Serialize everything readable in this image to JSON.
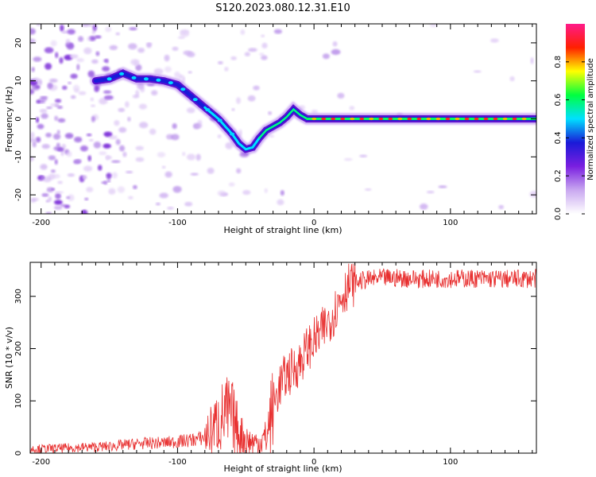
{
  "title": "S120.2023.080.12.31.E10",
  "chart_data": [
    {
      "type": "heatmap",
      "xlabel": "Height of straight line (km)",
      "ylabel": "Frequency (Hz)",
      "xlim": [
        -208,
        163
      ],
      "ylim": [
        -25,
        25
      ],
      "xticks": [
        -200,
        -100,
        0,
        100
      ],
      "yticks": [
        -20,
        -10,
        0,
        10,
        20
      ],
      "colorbar": {
        "label": "Normalized spectral amplitude",
        "range": [
          0,
          1
        ],
        "ticks": [
          "0.0",
          "0.2",
          "0.4",
          "0.6",
          "0.8"
        ],
        "colors": [
          "#ffffff",
          "#c9a8f0",
          "#7a1fe0",
          "#1a1ad8",
          "#00e0ff",
          "#00ff40",
          "#ffff00",
          "#ff2000",
          "#ff1a8a"
        ]
      },
      "ridge": {
        "x": [
          -160,
          -150,
          -140,
          -130,
          -120,
          -110,
          -100,
          -90,
          -80,
          -70,
          -60,
          -55,
          -50,
          -45,
          -40,
          -35,
          -30,
          -25,
          -20,
          -15,
          -10,
          -5,
          0,
          50,
          100,
          163
        ],
        "y": [
          10,
          10.5,
          12,
          10.5,
          10.5,
          10,
          9,
          6,
          3,
          0,
          -4,
          -6.5,
          -8,
          -7.5,
          -5,
          -3,
          -2,
          -1,
          0.5,
          2.5,
          1,
          0,
          0,
          0,
          0,
          0
        ]
      }
    },
    {
      "type": "line",
      "xlabel": "Height of straight line (km)",
      "ylabel": "SNR (10 * v/v)",
      "xlim": [
        -208,
        163
      ],
      "ylim": [
        0,
        365
      ],
      "xticks": [
        -200,
        -100,
        0,
        100
      ],
      "yticks": [
        0,
        100,
        200,
        300
      ],
      "color": "#e83030",
      "x": [
        -208,
        -190,
        -170,
        -150,
        -130,
        -110,
        -100,
        -90,
        -80,
        -75,
        -70,
        -65,
        -60,
        -55,
        -50,
        -45,
        -40,
        -35,
        -30,
        -25,
        -20,
        -15,
        -10,
        -5,
        0,
        5,
        10,
        15,
        20,
        25,
        30,
        35,
        40,
        50,
        60,
        80,
        100,
        120,
        140,
        163
      ],
      "y": [
        8,
        9,
        11,
        13,
        18,
        20,
        22,
        25,
        30,
        45,
        60,
        75,
        70,
        40,
        25,
        20,
        20,
        30,
        90,
        130,
        150,
        160,
        175,
        200,
        215,
        230,
        250,
        270,
        300,
        320,
        325,
        330,
        332,
        335,
        335,
        333,
        334,
        334,
        333,
        334
      ]
    }
  ]
}
